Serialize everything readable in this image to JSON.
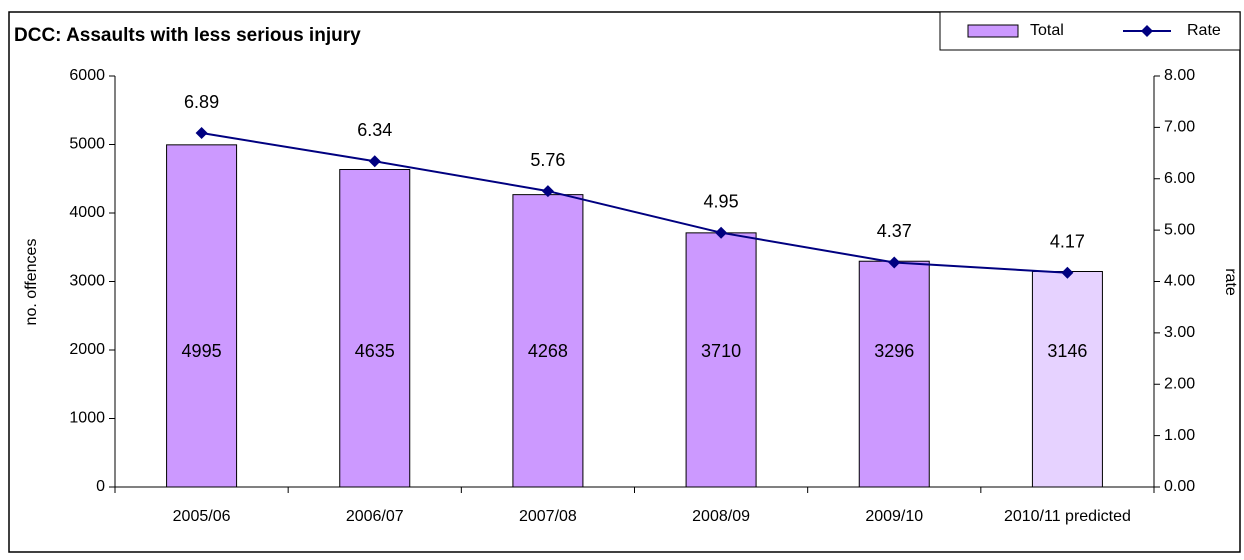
{
  "chart_data": {
    "type": "bar_line",
    "title": "DCC: Assaults with less serious injury",
    "ylabel": "no. offences",
    "y2label": "rate",
    "categories": [
      "2005/06",
      "2006/07",
      "2007/08",
      "2008/09",
      "2009/10",
      "2010/11 predicted"
    ],
    "series": [
      {
        "name": "Total",
        "type": "bar",
        "color": "#cc99ff",
        "colors": [
          "#cc99ff",
          "#cc99ff",
          "#cc99ff",
          "#cc99ff",
          "#cc99ff",
          "#e6d2ff"
        ],
        "values": [
          4995,
          4635,
          4268,
          3710,
          3296,
          3146
        ]
      },
      {
        "name": "Rate",
        "type": "line",
        "axis": "y2",
        "color": "#000080",
        "values": [
          6.89,
          6.34,
          5.76,
          4.95,
          4.37,
          4.17
        ]
      }
    ],
    "ylim": [
      0,
      6000
    ],
    "yticks": [
      0,
      1000,
      2000,
      3000,
      4000,
      5000,
      6000
    ],
    "y2lim": [
      0,
      8
    ],
    "y2ticks": [
      {
        "value": 0,
        "label": "0.00"
      },
      {
        "value": 1,
        "label": "1.00"
      },
      {
        "value": 2,
        "label": "2.00"
      },
      {
        "value": 3,
        "label": "3.00"
      },
      {
        "value": 4,
        "label": "4.00"
      },
      {
        "value": 5,
        "label": "5.00"
      },
      {
        "value": 6,
        "label": "6.00"
      },
      {
        "value": 7,
        "label": "7.00"
      },
      {
        "value": 8,
        "label": "8.00"
      }
    ],
    "legend": "top-right"
  }
}
